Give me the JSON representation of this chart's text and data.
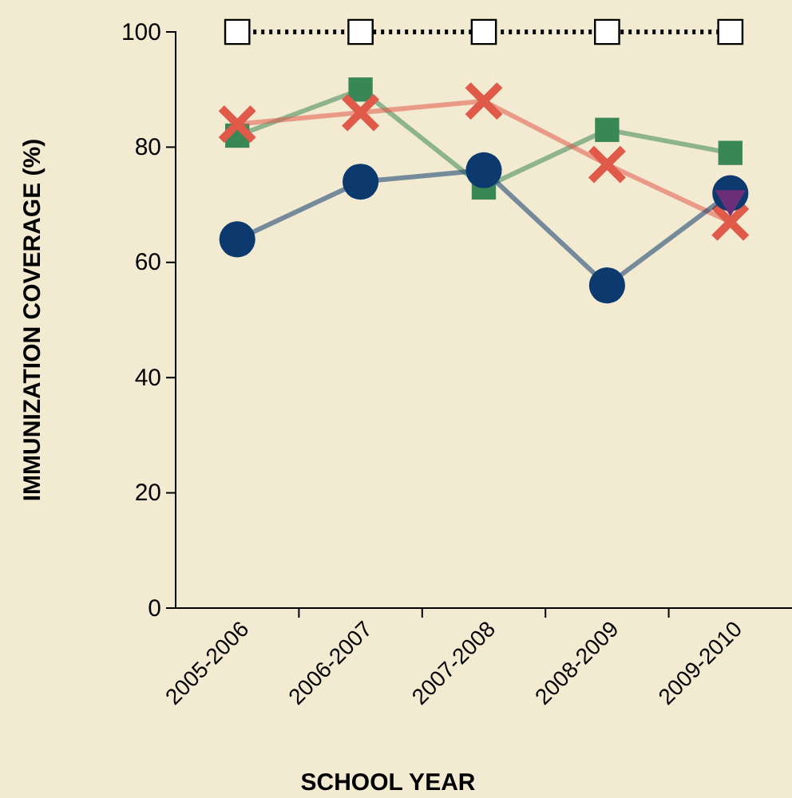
{
  "chart_data": {
    "type": "line",
    "xlabel": "SCHOOL YEAR",
    "ylabel": "IMMUNIZATION COVERAGE (%)",
    "categories": [
      "2005-2006",
      "2006-2007",
      "2007-2008",
      "2008-2009",
      "2009-2010"
    ],
    "ylim": [
      0,
      100
    ],
    "yticks": [
      0,
      20,
      40,
      60,
      80,
      100
    ],
    "grid": false,
    "series": [
      {
        "color": "#000000",
        "values": [
          100,
          100,
          100,
          100,
          100
        ],
        "marker": "square",
        "line_style": "dotted"
      },
      {
        "color": "#3a8756",
        "values": [
          82,
          90,
          73,
          83,
          79
        ],
        "marker": "square",
        "line_style": "solid"
      },
      {
        "color": "#e05a4a",
        "values": [
          84,
          86,
          88,
          77,
          67
        ],
        "marker": "cross",
        "line_style": "solid"
      },
      {
        "color": "#0d3a6e",
        "values": [
          64,
          74,
          76,
          56,
          72
        ],
        "marker": "circle",
        "line_style": "solid"
      },
      {
        "color": "#6b2f7a",
        "values": [
          null,
          null,
          null,
          null,
          71
        ],
        "marker": "triangle",
        "line_style": "none"
      }
    ]
  }
}
